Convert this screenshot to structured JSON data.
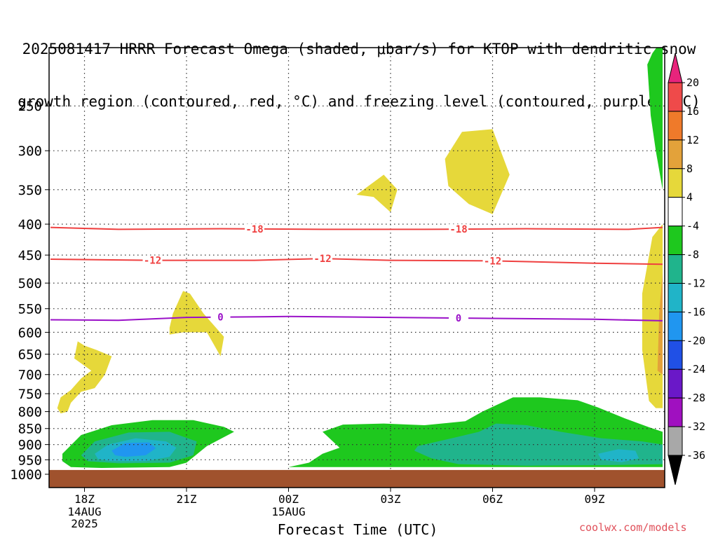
{
  "title_line1": "2025081417 HRRR Forecast Omega (shaded, μbar/s) for KTOP with dendritic snow",
  "title_line2": "growth region (contoured, red, °C) and freezing level (contoured, purple, °C)",
  "watermark": "coolwx.com/models",
  "chart_data": {
    "type": "area",
    "xlabel": "Forecast Time (UTC)",
    "ylabel": "",
    "y_scale": "log-pressure",
    "y_reversed": true,
    "ylim_hPa": [
      1000,
      200
    ],
    "y_ticks": [
      250,
      300,
      350,
      400,
      450,
      500,
      550,
      600,
      650,
      700,
      750,
      800,
      850,
      900,
      950,
      1000
    ],
    "x_ticks": [
      {
        "label": "18Z",
        "sub": [
          "14AUG",
          "2025"
        ],
        "hours": 1
      },
      {
        "label": "21Z",
        "sub": [],
        "hours": 4
      },
      {
        "label": "00Z",
        "sub": [
          "15AUG"
        ],
        "hours": 7
      },
      {
        "label": "03Z",
        "sub": [],
        "hours": 10
      },
      {
        "label": "06Z",
        "sub": [],
        "hours": 13
      },
      {
        "label": "09Z",
        "sub": [],
        "hours": 16
      }
    ],
    "xlim_hours": [
      0,
      18
    ],
    "grid": true,
    "colorbar": {
      "labels": [
        "20",
        "16",
        "12",
        "8",
        "4",
        "-4",
        "-8",
        "-12",
        "-16",
        "-20",
        "-24",
        "-28",
        "-32",
        "-36"
      ],
      "colors": [
        "#e8247c",
        "#ef4a4a",
        "#ef7a2a",
        "#e3a23a",
        "#e6d83a",
        "#ffffff",
        "#1ec81e",
        "#20b48c",
        "#20b4c8",
        "#2096f0",
        "#2050e6",
        "#6a18c8",
        "#a010c0",
        "#a8a8a8",
        "#000000"
      ]
    },
    "contours": [
      {
        "name": "-18",
        "color": "#ef4040",
        "label_at_hours": [
          6.0,
          12.0
        ],
        "points": [
          [
            0,
            405
          ],
          [
            2,
            408
          ],
          [
            5,
            407
          ],
          [
            8,
            408
          ],
          [
            11,
            408
          ],
          [
            14,
            407
          ],
          [
            17,
            408
          ],
          [
            18,
            405
          ]
        ]
      },
      {
        "name": "-12",
        "color": "#ef4040",
        "label_at_hours": [
          3.0,
          8.0,
          13.0
        ],
        "points": [
          [
            0,
            457
          ],
          [
            3,
            459
          ],
          [
            6,
            459
          ],
          [
            8,
            456
          ],
          [
            10,
            459
          ],
          [
            13,
            460
          ],
          [
            16,
            464
          ],
          [
            18,
            466
          ]
        ]
      },
      {
        "name": "0",
        "color": "#9a10c8",
        "label_at_hours": [
          5.0,
          12.0
        ],
        "points": [
          [
            0,
            573
          ],
          [
            2,
            574
          ],
          [
            4,
            568
          ],
          [
            7,
            566
          ],
          [
            10,
            568
          ],
          [
            13,
            570
          ],
          [
            16,
            572
          ],
          [
            18,
            575
          ]
        ]
      }
    ],
    "shaded_regions": [
      {
        "category": "4",
        "color": "#e6d83a",
        "points": [
          [
            0.5,
            800
          ],
          [
            0.6,
            775
          ],
          [
            0.9,
            745
          ],
          [
            1.3,
            735
          ],
          [
            1.6,
            700
          ],
          [
            1.8,
            655
          ],
          [
            1.35,
            640
          ],
          [
            1.0,
            630
          ],
          [
            0.8,
            620
          ],
          [
            0.7,
            660
          ],
          [
            1.2,
            690
          ],
          [
            0.9,
            710
          ],
          [
            0.6,
            740
          ],
          [
            0.3,
            760
          ],
          [
            0.2,
            790
          ],
          [
            0.3,
            805
          ]
        ]
      },
      {
        "category": "4",
        "color": "#e6d83a",
        "points": [
          [
            3.5,
            590
          ],
          [
            3.6,
            560
          ],
          [
            3.9,
            515
          ],
          [
            4.1,
            520
          ],
          [
            4.5,
            560
          ],
          [
            5.1,
            610
          ],
          [
            5.0,
            655
          ],
          [
            4.6,
            600
          ],
          [
            3.9,
            600
          ],
          [
            3.5,
            605
          ]
        ]
      },
      {
        "category": "4",
        "color": "#e6d83a",
        "points": [
          [
            9.0,
            357
          ],
          [
            9.8,
            330
          ],
          [
            10.2,
            350
          ],
          [
            10.0,
            382
          ],
          [
            9.5,
            360
          ]
        ]
      },
      {
        "category": "4",
        "color": "#e6d83a",
        "points": [
          [
            11.6,
            310
          ],
          [
            12.1,
            278
          ],
          [
            13.0,
            275
          ],
          [
            13.5,
            330
          ],
          [
            13.0,
            385
          ],
          [
            12.3,
            370
          ],
          [
            11.7,
            345
          ]
        ]
      },
      {
        "category": "4",
        "color": "#e6d83a",
        "points": [
          [
            17.6,
            770
          ],
          [
            17.4,
            640
          ],
          [
            17.4,
            520
          ],
          [
            17.7,
            420
          ],
          [
            18.0,
            400
          ],
          [
            18.0,
            790
          ],
          [
            17.8,
            790
          ]
        ]
      },
      {
        "category": "8",
        "color": "#e3a23a",
        "points": [
          [
            17.85,
            690
          ],
          [
            17.9,
            560
          ],
          [
            18.0,
            480
          ],
          [
            18.0,
            700
          ]
        ]
      },
      {
        "category": "-4",
        "color": "#1ec81e",
        "points": [
          [
            0.35,
            930
          ],
          [
            0.9,
            870
          ],
          [
            1.8,
            840
          ],
          [
            3.0,
            825
          ],
          [
            4.2,
            825
          ],
          [
            5.1,
            845
          ],
          [
            5.4,
            860
          ],
          [
            4.6,
            905
          ],
          [
            4.0,
            960
          ],
          [
            3.5,
            975
          ],
          [
            1.5,
            978
          ],
          [
            0.6,
            975
          ],
          [
            0.35,
            955
          ]
        ]
      },
      {
        "category": "-4",
        "color": "#1ec81e",
        "points": [
          [
            7.0,
            975
          ],
          [
            7.6,
            960
          ],
          [
            8.0,
            930
          ],
          [
            8.5,
            910
          ],
          [
            8.0,
            860
          ],
          [
            8.6,
            838
          ],
          [
            9.8,
            835
          ],
          [
            11.0,
            840
          ],
          [
            12.2,
            828
          ],
          [
            12.7,
            800
          ],
          [
            13.6,
            760
          ],
          [
            14.4,
            760
          ],
          [
            15.5,
            768
          ],
          [
            16.1,
            788
          ],
          [
            16.9,
            820
          ],
          [
            17.6,
            846
          ],
          [
            18.0,
            860
          ],
          [
            18.0,
            975
          ]
        ]
      },
      {
        "category": "-4",
        "color": "#1ec81e",
        "points": [
          [
            17.7,
            200
          ],
          [
            17.95,
            190
          ],
          [
            18.0,
            195
          ],
          [
            18.0,
            350
          ],
          [
            17.8,
            300
          ],
          [
            17.65,
            260
          ],
          [
            17.55,
            210
          ]
        ]
      },
      {
        "category": "-8",
        "color": "#20b48c",
        "points": [
          [
            0.9,
            935
          ],
          [
            1.3,
            890
          ],
          [
            2.3,
            862
          ],
          [
            3.5,
            860
          ],
          [
            4.3,
            890
          ],
          [
            4.2,
            935
          ],
          [
            3.5,
            960
          ],
          [
            2.0,
            962
          ],
          [
            1.1,
            955
          ]
        ]
      },
      {
        "category": "-8",
        "color": "#20b48c",
        "points": [
          [
            10.8,
            905
          ],
          [
            11.8,
            880
          ],
          [
            12.6,
            860
          ],
          [
            13.1,
            835
          ],
          [
            14.0,
            840
          ],
          [
            15.0,
            860
          ],
          [
            16.2,
            880
          ],
          [
            17.4,
            890
          ],
          [
            18.0,
            900
          ],
          [
            18.0,
            965
          ],
          [
            16.5,
            968
          ],
          [
            14.0,
            970
          ],
          [
            12.0,
            965
          ],
          [
            11.2,
            945
          ],
          [
            10.7,
            920
          ]
        ]
      },
      {
        "category": "-12",
        "color": "#20b4c8",
        "points": [
          [
            1.3,
            930
          ],
          [
            1.7,
            900
          ],
          [
            2.5,
            880
          ],
          [
            3.4,
            890
          ],
          [
            3.7,
            910
          ],
          [
            3.5,
            940
          ],
          [
            2.8,
            955
          ],
          [
            1.8,
            955
          ],
          [
            1.4,
            948
          ]
        ]
      },
      {
        "category": "-12",
        "color": "#20b4c8",
        "points": [
          [
            16.1,
            930
          ],
          [
            16.7,
            915
          ],
          [
            17.2,
            920
          ],
          [
            17.3,
            945
          ],
          [
            16.8,
            958
          ],
          [
            16.2,
            950
          ]
        ]
      },
      {
        "category": "-16",
        "color": "#2096f0",
        "points": [
          [
            1.8,
            920
          ],
          [
            2.2,
            895
          ],
          [
            2.9,
            893
          ],
          [
            3.1,
            912
          ],
          [
            2.8,
            935
          ],
          [
            2.2,
            940
          ],
          [
            1.9,
            935
          ]
        ]
      }
    ]
  }
}
